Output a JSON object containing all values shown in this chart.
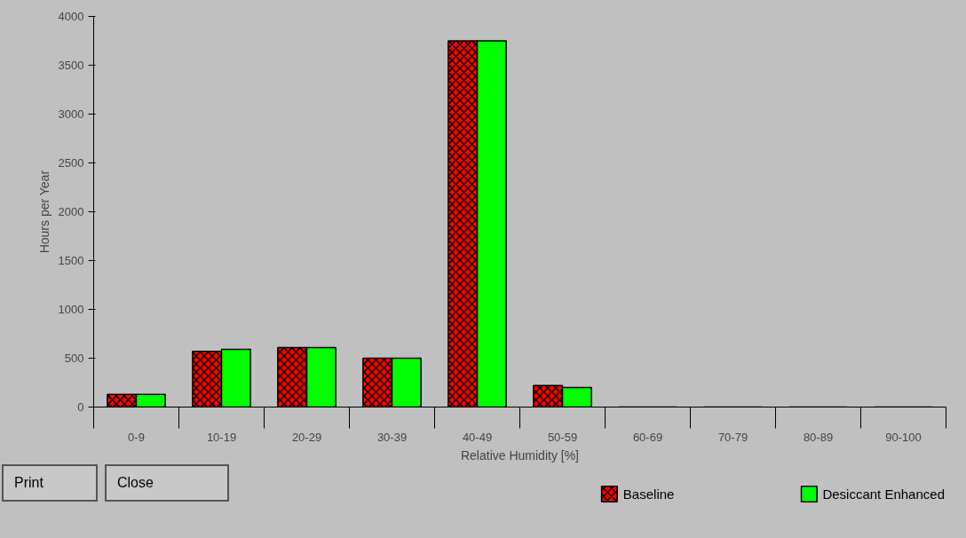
{
  "chart_data": {
    "type": "bar",
    "xlabel": "Relative Humidity [%]",
    "ylabel": "Hours per Year",
    "categories": [
      "0-9",
      "10-19",
      "20-29",
      "30-39",
      "40-49",
      "50-59",
      "60-69",
      "70-79",
      "80-89",
      "90-100"
    ],
    "series": [
      {
        "name": "Baseline",
        "color": "#ff0000",
        "values": [
          130,
          570,
          610,
          500,
          3750,
          220,
          0,
          0,
          0,
          0
        ]
      },
      {
        "name": "Desiccant Enhanced",
        "color": "#00ff00",
        "values": [
          130,
          590,
          610,
          500,
          3750,
          200,
          0,
          0,
          0,
          0
        ]
      }
    ],
    "ylim": [
      0,
      4000
    ],
    "yticks": [
      0,
      500,
      1000,
      1500,
      2000,
      2500,
      3000,
      3500,
      4000
    ],
    "grid": false,
    "legend": "bottom",
    "annotations": [
      "Print",
      "Close"
    ]
  }
}
